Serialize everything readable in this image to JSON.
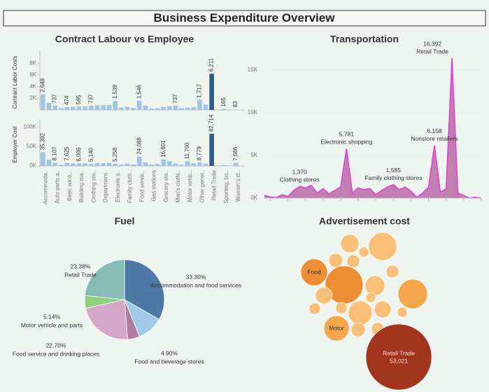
{
  "title": "Business Expenditure Overview",
  "chart_data": [
    {
      "type": "bar",
      "title": "Contract Labour vs Employee",
      "categories": [
        "Accommoda..",
        null,
        "Auto parts a..",
        null,
        "Beer, wine,..",
        null,
        "Building ma..",
        null,
        "Clothing sto..",
        null,
        "Department..",
        null,
        "Electronic s..",
        null,
        "Family cloth..",
        null,
        "Food servic..",
        null,
        "Gas stations",
        null,
        "Grocery sto..",
        null,
        "Men's clothi..",
        null,
        "Motor vehic..",
        null,
        "Other gener..",
        null,
        "Retail Trade",
        null,
        "Sporting, bo..",
        null,
        "Women's cl..",
        null
      ],
      "colors": [
        "#a0c4e4",
        "#a0c4e4",
        "#a0c4e4",
        "#a0c4e4",
        "#a0c4e4",
        "#a0c4e4",
        "#a0c4e4",
        "#a0c4e4",
        "#a0c4e4",
        "#a0c4e4",
        "#a0c4e4",
        "#a0c4e4",
        "#a0c4e4",
        "#a0c4e4",
        "#a0c4e4",
        "#a0c4e4",
        "#a0c4e4",
        "#a0c4e4",
        "#a0c4e4",
        "#a0c4e4",
        "#a0c4e4",
        "#a0c4e4",
        "#a0c4e4",
        "#a0c4e4",
        "#a0c4e4",
        "#a0c4e4",
        "#a0c4e4",
        "#a0c4e4",
        "#2e5b8a",
        "#a0c4e4",
        "#a0c4e4",
        "#a0c4e4",
        "#a0c4e4",
        "#a0c4e4"
      ],
      "panels": [
        {
          "ylabel": "Contract Labor Costs",
          "values": [
            2649,
            1200,
            737,
            300,
            474,
            520,
            595,
            600,
            737,
            800,
            820,
            830,
            1539,
            400,
            500,
            350,
            1546,
            700,
            250,
            300,
            520,
            650,
            737,
            300,
            400,
            500,
            1717,
            900,
            6211,
            0,
            165,
            0,
            83,
            0
          ],
          "value_labels": [
            "2,649",
            null,
            "737",
            null,
            "474",
            null,
            "595",
            null,
            "737",
            null,
            null,
            null,
            "1,539",
            null,
            null,
            null,
            "1,546",
            null,
            null,
            null,
            null,
            null,
            "737",
            null,
            null,
            null,
            "1,717",
            null,
            "6,211",
            null,
            "165",
            null,
            "83",
            null
          ],
          "ylim": [
            0,
            9500
          ],
          "yticks": [
            {
              "value": 2000,
              "label": "2K"
            },
            {
              "value": 4000,
              "label": "4K"
            },
            {
              "value": 6000,
              "label": "6K"
            },
            {
              "value": 8000,
              "label": "8K"
            }
          ]
        },
        {
          "ylabel": "Employer Cost",
          "values": [
            35392,
            16000,
            8107,
            3000,
            7625,
            6500,
            6006,
            6500,
            5140,
            7000,
            7000,
            8000,
            5258,
            3000,
            6000,
            4000,
            24088,
            9000,
            4000,
            5000,
            16601,
            12000,
            6000,
            3000,
            11700,
            7000,
            8779,
            6000,
            82714,
            0,
            2000,
            0,
            7686,
            0
          ],
          "value_labels": [
            "35,392",
            null,
            "8,107",
            null,
            "7,625",
            null,
            "6,006",
            null,
            "5,140",
            null,
            null,
            null,
            "5,258",
            null,
            null,
            null,
            "24,088",
            null,
            null,
            null,
            "16,601",
            null,
            null,
            null,
            "11,700",
            null,
            "8,779",
            null,
            "82,714",
            null,
            null,
            null,
            "7,686",
            null
          ],
          "ylim": [
            0,
            110000
          ],
          "yticks": [
            {
              "value": 0,
              "label": "0K"
            },
            {
              "value": 50000,
              "label": "50K"
            },
            {
              "value": 100000,
              "label": "100K"
            }
          ]
        }
      ]
    },
    {
      "type": "area",
      "title": "Transportation",
      "color": "#e83ad6",
      "fill": "#b86aa6",
      "categories": [
        null,
        null,
        null,
        null,
        null,
        null,
        "Clothing stores",
        null,
        null,
        null,
        null,
        null,
        null,
        null,
        "Electronic shopping",
        null,
        null,
        null,
        null,
        null,
        null,
        null,
        "Family clothing stores",
        null,
        null,
        null,
        null,
        null,
        null,
        "Nonstore retailers",
        null,
        null,
        "Retail Trade",
        null,
        null,
        null,
        null,
        null
      ],
      "values": [
        300,
        150,
        50,
        400,
        200,
        900,
        1370,
        1200,
        1500,
        600,
        1100,
        500,
        900,
        1300,
        5781,
        600,
        1200,
        1000,
        1100,
        400,
        900,
        1300,
        1585,
        1000,
        1300,
        800,
        100,
        600,
        1300,
        6158,
        700,
        1100,
        16392,
        600,
        300,
        0,
        100,
        0
      ],
      "value_labels": [
        null,
        null,
        null,
        null,
        null,
        null,
        "1,370",
        null,
        null,
        null,
        null,
        null,
        null,
        null,
        "5,781",
        null,
        null,
        null,
        null,
        null,
        null,
        null,
        "1,585",
        null,
        null,
        null,
        null,
        null,
        null,
        "6,158",
        null,
        null,
        "16,392",
        null,
        null,
        null,
        null,
        null
      ],
      "ylim": [
        0,
        17500
      ],
      "yticks": [
        {
          "value": 0,
          "label": "0K"
        },
        {
          "value": 5000,
          "label": "5K"
        },
        {
          "value": 10000,
          "label": "10K"
        },
        {
          "value": 15000,
          "label": "15K"
        }
      ]
    },
    {
      "type": "pie",
      "title": "Fuel",
      "categories": [
        "Accommodation and food services",
        null,
        "Food and beverage stores",
        "Food service and drinking places",
        "Motor vehicle and parts",
        "Retail Trade"
      ],
      "values": [
        33.3,
        10.58,
        4.9,
        22.7,
        5.14,
        23.38
      ],
      "value_labels": [
        "33.30%",
        null,
        "4.90%",
        "22.70%",
        "5.14%",
        "23.38%"
      ],
      "colors": [
        "#4e79a7",
        "#a0cbe8",
        "#b07aa1",
        "#d4a6c8",
        "#8cd17d",
        "#86bcb6"
      ]
    },
    {
      "type": "bubble",
      "title": "Advertisement cost",
      "categories": [
        null,
        null,
        null,
        null,
        null,
        "Food",
        null,
        null,
        null,
        null,
        null,
        null,
        null,
        null,
        null,
        null,
        null,
        "Motor",
        null,
        null,
        "Retail Trade"
      ],
      "values": [
        4060,
        9610,
        1180,
        1950,
        2400,
        8670,
        17520,
        4710,
        10600,
        1950,
        3460,
        1540,
        3460,
        6940,
        1540,
        1180,
        1180,
        7790,
        2400,
        1950,
        53021
      ],
      "value_labels": [
        null,
        null,
        null,
        null,
        null,
        null,
        null,
        null,
        null,
        null,
        null,
        null,
        null,
        null,
        null,
        null,
        null,
        null,
        null,
        null,
        "53,021"
      ],
      "colors": [
        "#fbbf78",
        "#fbbf78",
        "#fbbf78",
        "#fbbf78",
        "#fbbf78",
        "#ec8f34",
        "#ec8f34",
        "#fbbf78",
        "#f5a74e",
        "#fbbf78",
        "#fbbf78",
        "#fbbf78",
        "#fbbf78",
        "#fbbf78",
        "#fbbf78",
        "#fbbf78",
        "#fbbf78",
        "#f5a74e",
        "#fbbf78",
        "#fbbf78",
        "#a3341e"
      ]
    }
  ]
}
